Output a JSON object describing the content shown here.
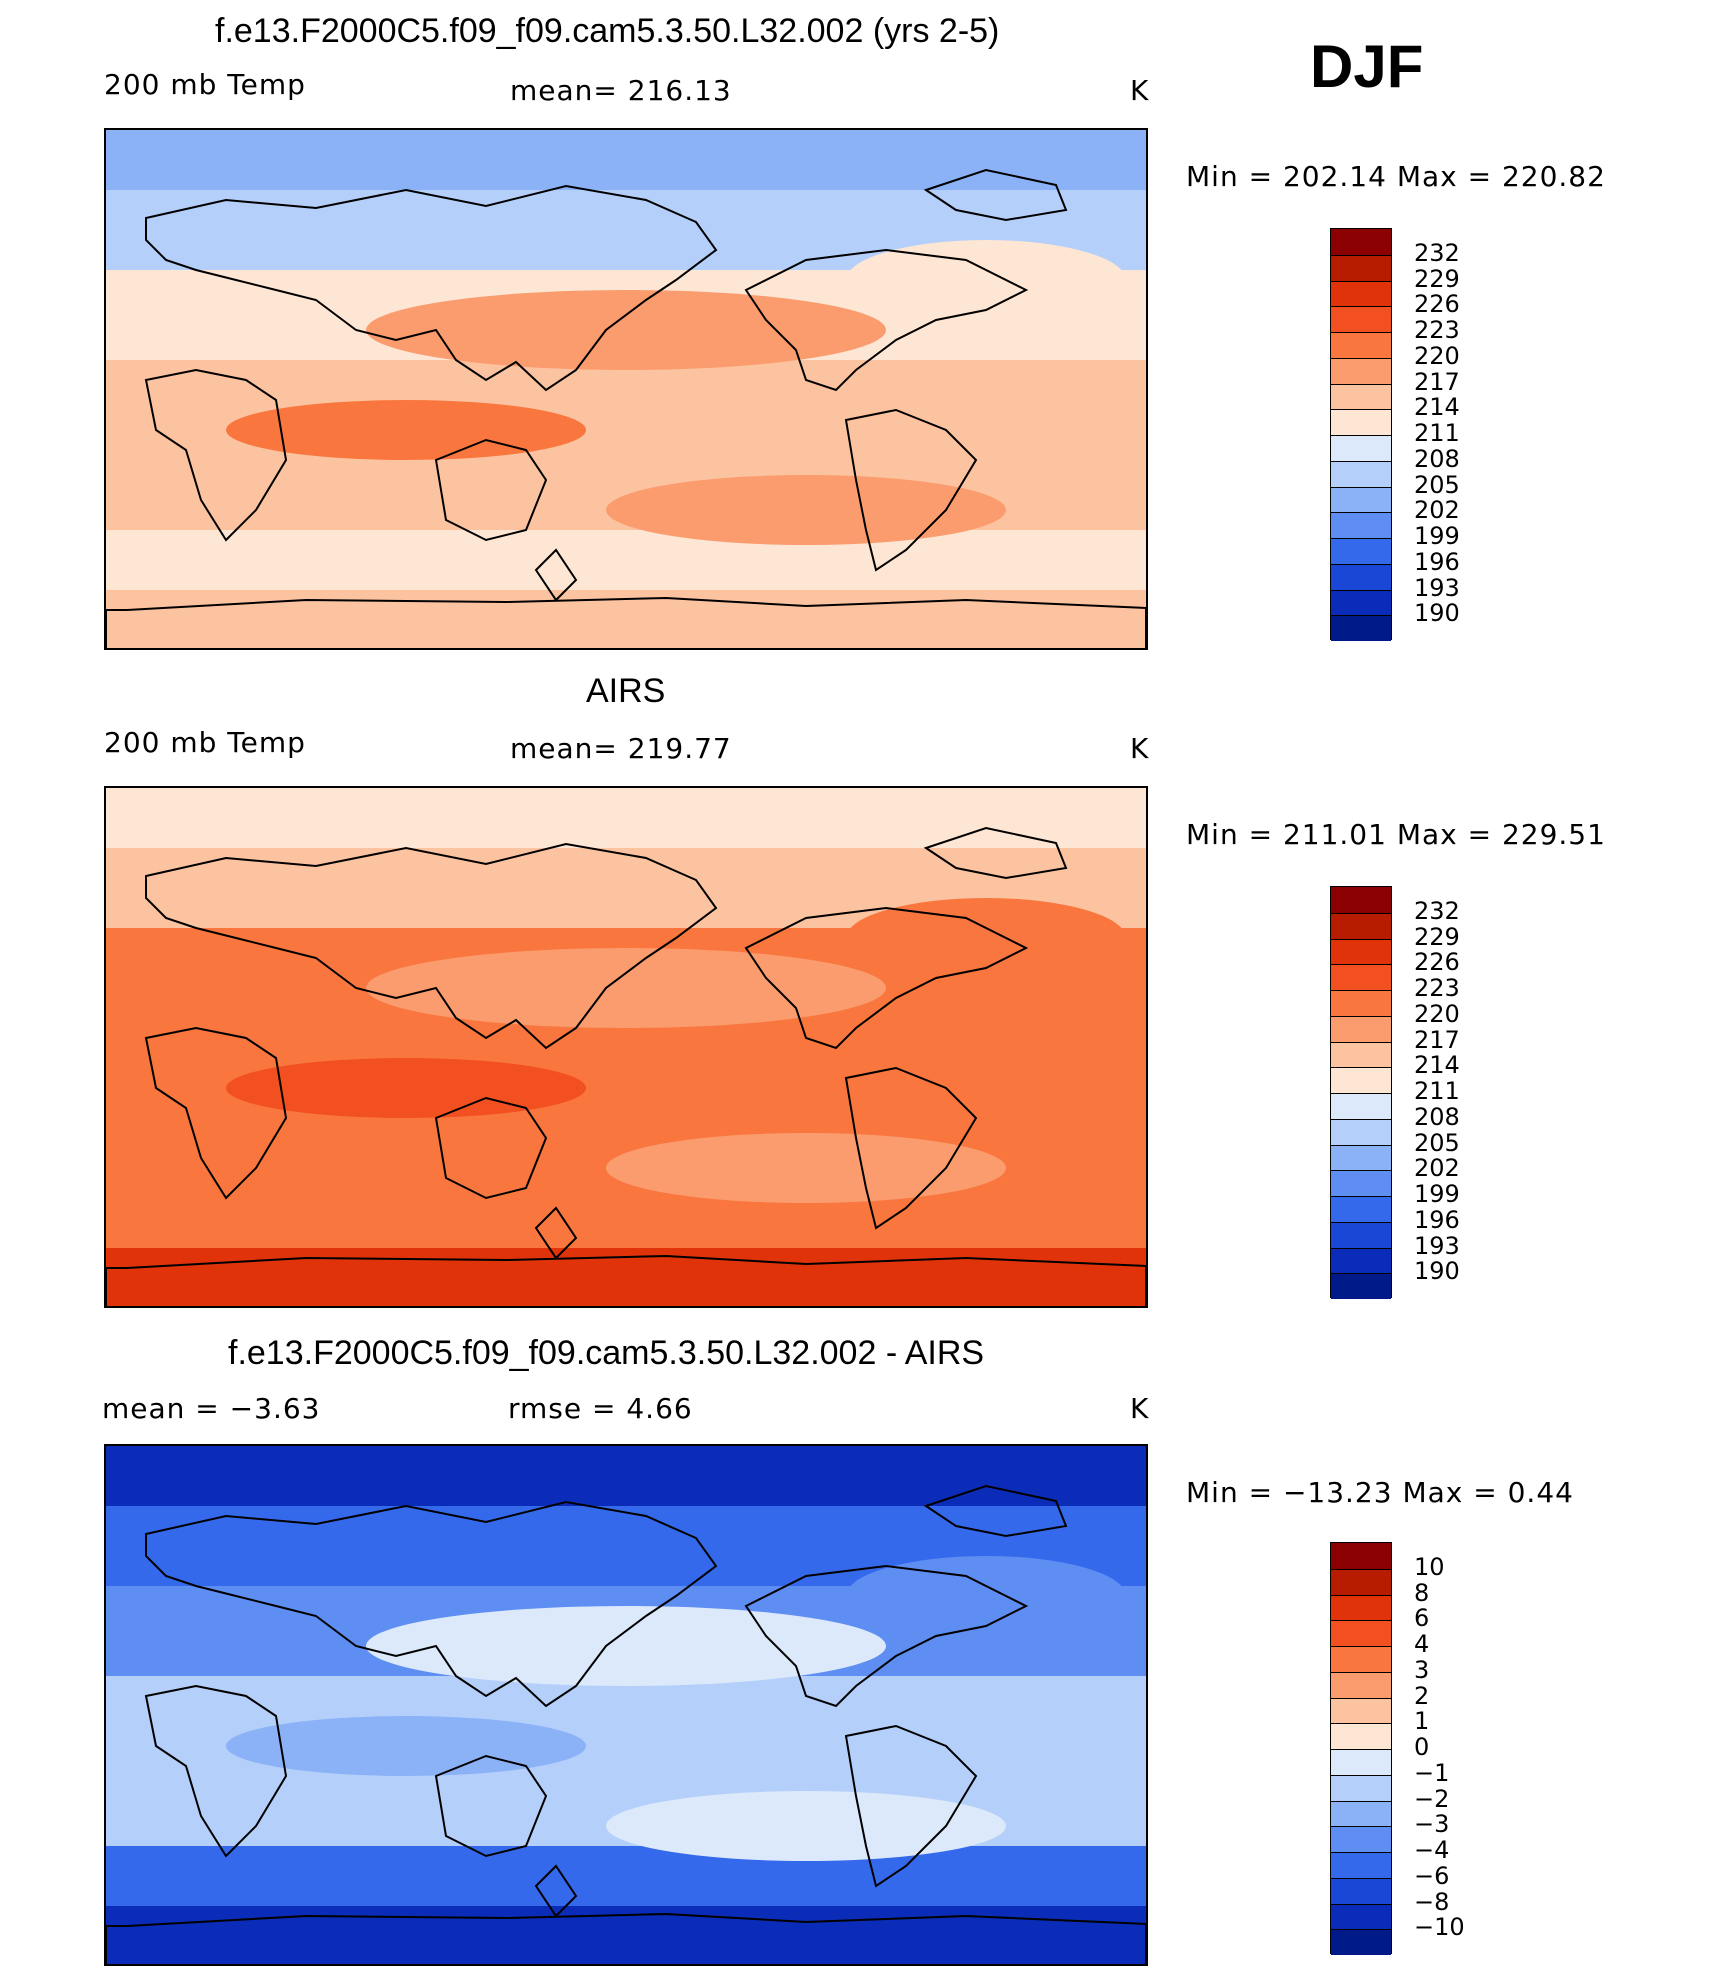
{
  "season": "DJF",
  "panels": [
    {
      "title": "f.e13.F2000C5.f09_f09.cam5.3.50.L32.002 (yrs 2-5)",
      "left_label": "200 mb Temp",
      "center_label": "mean=  216.13",
      "units": "K",
      "minmax": "Min  =  202.14  Max  =  220.82",
      "scale_labels": [
        "232",
        "229",
        "226",
        "223",
        "220",
        "217",
        "214",
        "211",
        "208",
        "205",
        "202",
        "199",
        "196",
        "193",
        "190"
      ],
      "scale_colors": [
        "#8b0000",
        "#b71c00",
        "#e0330a",
        "#f25020",
        "#f9773e",
        "#fb9c6e",
        "#fcc3a0",
        "#fde6d4",
        "#dbe9fb",
        "#b4cffa",
        "#8bb2f7",
        "#5f8ef3",
        "#3569ec",
        "#1b47d7",
        "#0a2cb8",
        "#001a8a"
      ],
      "map_colors": {
        "polar_n": "#8bb2f7",
        "sub_n": "#b4cffa",
        "mid_n": "#fde6d4",
        "trop": "#fcc3a0",
        "band": "#fb9c6e",
        "hot": "#f9773e",
        "mid_s": "#fde6d4",
        "polar_s": "#fcc3a0"
      }
    },
    {
      "title": "AIRS",
      "left_label": "200 mb Temp",
      "center_label": "mean=  219.77",
      "units": "K",
      "minmax": "Min  =  211.01  Max  =  229.51",
      "scale_labels": [
        "232",
        "229",
        "226",
        "223",
        "220",
        "217",
        "214",
        "211",
        "208",
        "205",
        "202",
        "199",
        "196",
        "193",
        "190"
      ],
      "scale_colors": [
        "#8b0000",
        "#b71c00",
        "#e0330a",
        "#f25020",
        "#f9773e",
        "#fb9c6e",
        "#fcc3a0",
        "#fde6d4",
        "#dbe9fb",
        "#b4cffa",
        "#8bb2f7",
        "#5f8ef3",
        "#3569ec",
        "#1b47d7",
        "#0a2cb8",
        "#001a8a"
      ],
      "map_colors": {
        "polar_n": "#fde6d4",
        "sub_n": "#fcc3a0",
        "mid_n": "#f9773e",
        "trop": "#f9773e",
        "band": "#fb9c6e",
        "hot": "#f25020",
        "mid_s": "#f9773e",
        "polar_s": "#e0330a"
      }
    },
    {
      "title": "f.e13.F2000C5.f09_f09.cam5.3.50.L32.002 - AIRS",
      "left_label": "mean  =    −3.63",
      "center_label": "rmse  =     4.66",
      "units": "K",
      "minmax": "Min  =  −13.23  Max  =     0.44",
      "scale_labels": [
        "10",
        "8",
        "6",
        "4",
        "3",
        "2",
        "1",
        "0",
        "−1",
        "−2",
        "−3",
        "−4",
        "−6",
        "−8",
        "−10"
      ],
      "scale_colors": [
        "#8b0000",
        "#b71c00",
        "#e0330a",
        "#f25020",
        "#f9773e",
        "#fb9c6e",
        "#fcc3a0",
        "#fde6d4",
        "#dbe9fb",
        "#b4cffa",
        "#8bb2f7",
        "#5f8ef3",
        "#3569ec",
        "#1b47d7",
        "#0a2cb8",
        "#001a8a"
      ],
      "map_colors": {
        "polar_n": "#0a2cb8",
        "sub_n": "#3569ec",
        "mid_n": "#5f8ef3",
        "trop": "#b4cffa",
        "band": "#dbe9fb",
        "hot": "#8bb2f7",
        "mid_s": "#3569ec",
        "polar_s": "#0a2cb8"
      }
    }
  ]
}
